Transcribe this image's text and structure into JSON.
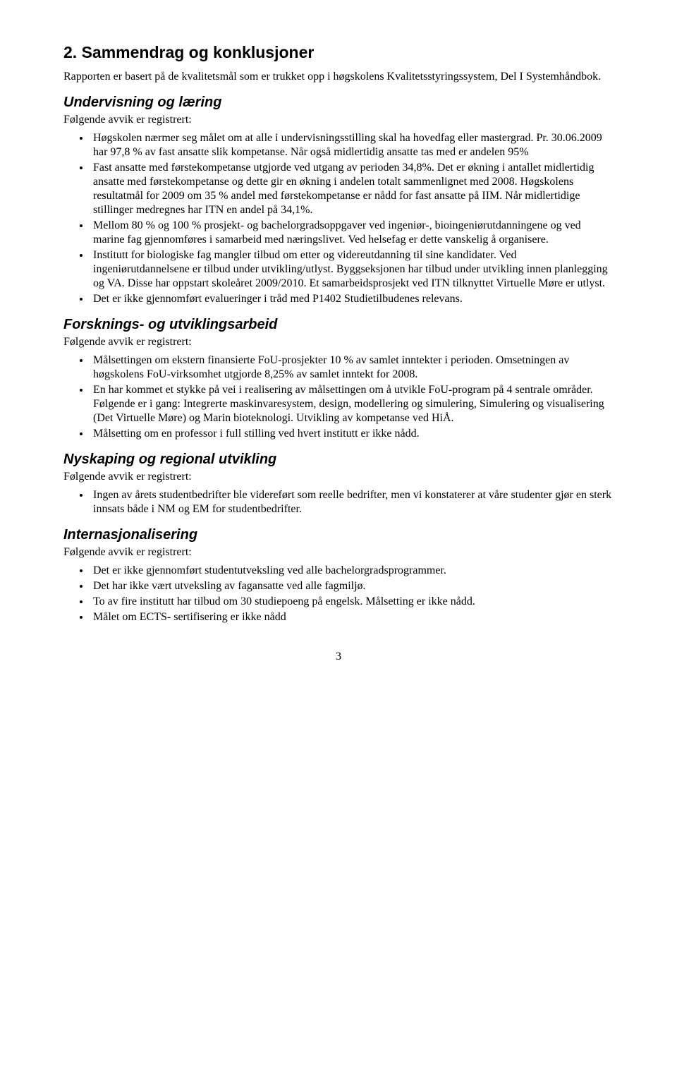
{
  "heading": "2.   Sammendrag og konklusjoner",
  "intro": "Rapporten er basert på de kvalitetsmål som er trukket opp i høgskolens Kvalitetsstyringssystem, Del I Systemhåndbok.",
  "sections": [
    {
      "title": "Undervisning og læring",
      "lead": "Følgende avvik er registrert:",
      "items": [
        "Høgskolen nærmer seg målet om at alle i undervisningsstilling skal ha hovedfag eller mastergrad. Pr. 30.06.2009 har 97,8 % av fast ansatte slik kompetanse. Når også midlertidig ansatte tas med er andelen 95%",
        "Fast ansatte med førstekompetanse utgjorde ved utgang av perioden 34,8%. Det er økning i antallet midlertidig ansatte med førstekompetanse og dette gir en økning i andelen totalt sammenlignet med 2008. Høgskolens resultatmål for 2009 om 35 % andel med førstekompetanse er nådd for fast ansatte på IIM. Når midlertidige stillinger medregnes har ITN en andel på 34,1%.",
        "Mellom 80 % og 100 % prosjekt- og bachelorgradsoppgaver ved ingeniør-, bioingeniørutdanningene og ved marine fag gjennomføres i samarbeid med næringslivet. Ved helsefag er dette vanskelig å organisere.",
        "Institutt for biologiske fag mangler tilbud om etter og videreutdanning til sine kandidater. Ved ingeniørutdannelsene er tilbud under utvikling/utlyst. Byggseksjonen har tilbud under utvikling innen planlegging og VA. Disse har oppstart skoleåret 2009/2010. Et samarbeidsprosjekt ved ITN tilknyttet Virtuelle Møre er utlyst.",
        "Det er ikke gjennomført evalueringer i tråd med P1402 Studietilbudenes relevans."
      ]
    },
    {
      "title": "Forsknings- og utviklingsarbeid",
      "lead": "Følgende avvik er registrert:",
      "items": [
        "Målsettingen om ekstern finansierte FoU-prosjekter 10 % av samlet inntekter i perioden. Omsetningen av høgskolens FoU-virksomhet utgjorde 8,25% av samlet inntekt for 2008.",
        "En har kommet et stykke på vei i realisering av målsettingen om å utvikle FoU-program på 4 sentrale områder. Følgende er i gang: Integrerte maskinvaresystem, design, modellering og simulering, Simulering og visualisering (Det Virtuelle Møre) og Marin bioteknologi. Utvikling av kompetanse ved HiÅ.",
        "Målsetting om en professor i full stilling ved hvert institutt er ikke nådd."
      ]
    },
    {
      "title": "Nyskaping og regional utvikling",
      "lead": "Følgende avvik er registrert:",
      "items": [
        "Ingen av årets studentbedrifter ble videreført som reelle bedrifter, men vi konstaterer at våre studenter gjør en sterk innsats både i NM og EM for studentbedrifter."
      ]
    },
    {
      "title": "Internasjonalisering",
      "lead": "Følgende avvik er registrert:",
      "items": [
        "Det er ikke gjennomført studentutveksling ved alle bachelorgradsprogrammer.",
        "Det har ikke vært utveksling av fagansatte ved alle fagmiljø.",
        "To av fire institutt har tilbud om 30 studiepoeng på engelsk. Målsetting er ikke nådd.",
        "Målet om ECTS- sertifisering er ikke nådd"
      ]
    }
  ],
  "page_number": "3"
}
